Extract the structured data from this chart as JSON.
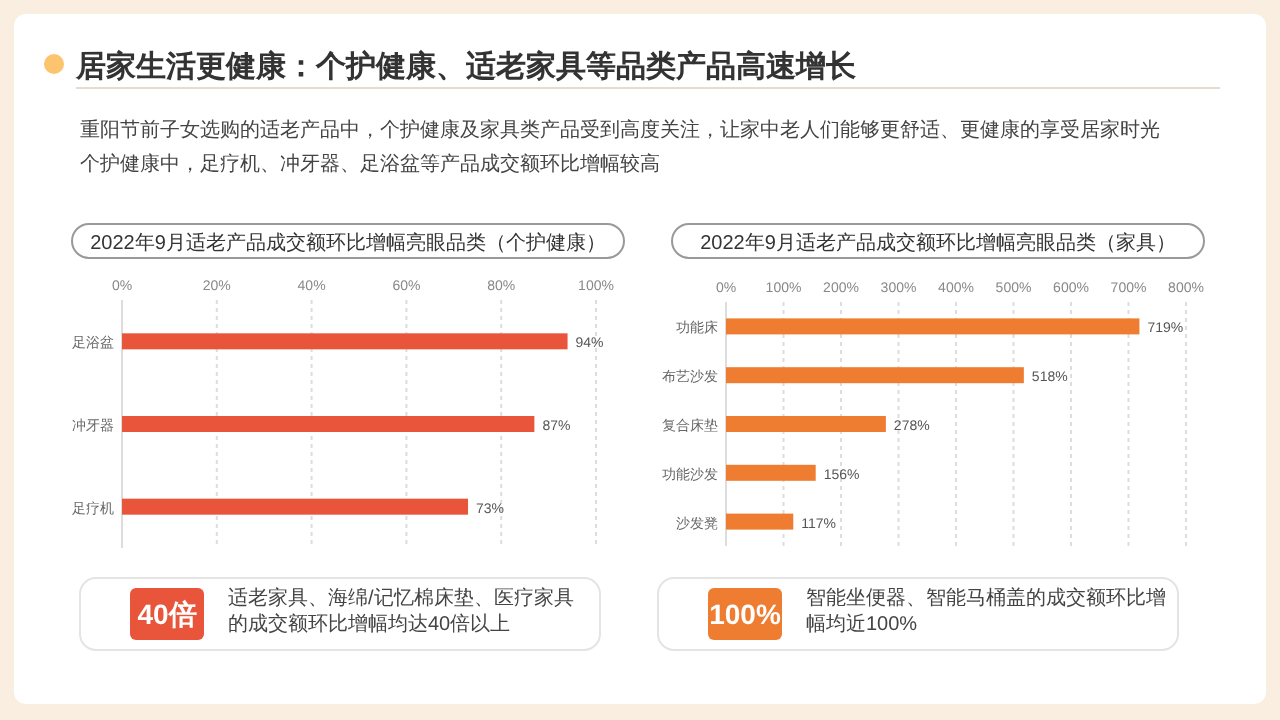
{
  "chart_data": [
    {
      "type": "other",
      "title": "居家生活更健康：个护健康、适老家具等品类产品高速增长",
      "annotations": [
        "重阳节前子女选购的适老产品中，个护健康及家具类产品受到高度关注，让家中老人们能够更舒适、更健康的享受居家时光",
        "个护健康中，足疗机、冲牙器、足浴盆等产品成交额环比增幅较高"
      ]
    },
    {
      "type": "bar",
      "orientation": "horizontal",
      "title": "2022年9月适老产品成交额环比增幅亮眼品类（个护健康）",
      "categories": [
        "足浴盆",
        "冲牙器",
        "足疗机"
      ],
      "values": [
        94,
        87,
        73
      ],
      "value_labels": [
        "94%",
        "87%",
        "73%"
      ],
      "color": "#e8553a",
      "xlim": [
        0,
        100
      ],
      "xticks": [
        {
          "value": 0,
          "label": "0%"
        },
        {
          "value": 20,
          "label": "20%"
        },
        {
          "value": 40,
          "label": "40%"
        },
        {
          "value": 60,
          "label": "60%"
        },
        {
          "value": 80,
          "label": "80%"
        },
        {
          "value": 100,
          "label": "100%"
        }
      ],
      "grid": "x"
    },
    {
      "type": "bar",
      "orientation": "horizontal",
      "title": "2022年9月适老产品成交额环比增幅亮眼品类（家具）",
      "categories": [
        "功能床",
        "布艺沙发",
        "复合床垫",
        "功能沙发",
        "沙发凳"
      ],
      "values": [
        719,
        518,
        278,
        156,
        117
      ],
      "value_labels": [
        "719%",
        "518%",
        "278%",
        "156%",
        "117%"
      ],
      "color": "#ee7d31",
      "xlim": [
        0,
        800
      ],
      "xticks": [
        {
          "value": 0,
          "label": "0%"
        },
        {
          "value": 100,
          "label": "100%"
        },
        {
          "value": 200,
          "label": "200%"
        },
        {
          "value": 300,
          "label": "300%"
        },
        {
          "value": 400,
          "label": "400%"
        },
        {
          "value": 500,
          "label": "500%"
        },
        {
          "value": 600,
          "label": "600%"
        },
        {
          "value": 700,
          "label": "700%"
        },
        {
          "value": 800,
          "label": "800%"
        }
      ],
      "grid": "x"
    },
    {
      "type": "other",
      "title": "40倍",
      "color": "#e8553a",
      "annotations": [
        "适老家具、海绵/记忆棉床垫、医疗家具的成交额环比增幅均达40倍以上"
      ]
    },
    {
      "type": "other",
      "title": "100%",
      "color": "#ee7d31",
      "annotations": [
        "智能坐便器、智能马桶盖的成交额环比增幅均近100%"
      ]
    }
  ]
}
